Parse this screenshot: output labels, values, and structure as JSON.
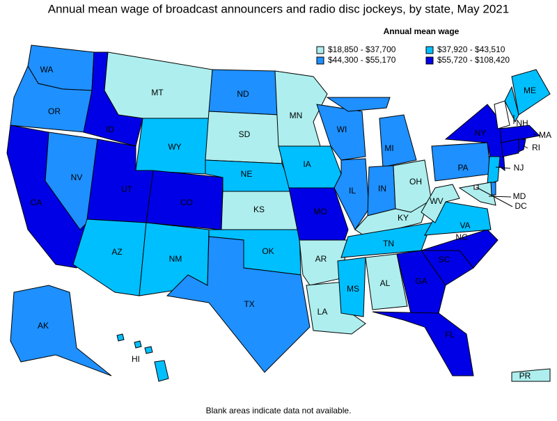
{
  "title": "Annual mean wage of broadcast announcers and radio disc jockeys, by state, May 2021",
  "legend": {
    "title": "Annual mean wage",
    "bins": [
      {
        "label": "$18,850 - $37,700",
        "color": "#aeeeee"
      },
      {
        "label": "$37,920 - $43,510",
        "color": "#00bfff"
      },
      {
        "label": "$44,300 - $55,170",
        "color": "#1e90ff"
      },
      {
        "label": "$55,720 - $108,420",
        "color": "#0000e6"
      }
    ]
  },
  "states": [
    {
      "label": "WA",
      "bin": 2
    },
    {
      "label": "OR",
      "bin": 2
    },
    {
      "label": "CA",
      "bin": 3
    },
    {
      "label": "NV",
      "bin": 2
    },
    {
      "label": "ID",
      "bin": 3
    },
    {
      "label": "MT",
      "bin": 0
    },
    {
      "label": "WY",
      "bin": 1
    },
    {
      "label": "UT",
      "bin": 3
    },
    {
      "label": "CO",
      "bin": 3
    },
    {
      "label": "AZ",
      "bin": 1
    },
    {
      "label": "NM",
      "bin": 1
    },
    {
      "label": "ND",
      "bin": 2
    },
    {
      "label": "SD",
      "bin": 0
    },
    {
      "label": "NE",
      "bin": 1
    },
    {
      "label": "KS",
      "bin": 0
    },
    {
      "label": "OK",
      "bin": 1
    },
    {
      "label": "TX",
      "bin": 2
    },
    {
      "label": "MN",
      "bin": 0
    },
    {
      "label": "IA",
      "bin": 1
    },
    {
      "label": "MO",
      "bin": 3
    },
    {
      "label": "AR",
      "bin": 0
    },
    {
      "label": "LA",
      "bin": 0
    },
    {
      "label": "WI",
      "bin": 2
    },
    {
      "label": "IL",
      "bin": 2
    },
    {
      "label": "MI",
      "bin": 2
    },
    {
      "label": "IN",
      "bin": 2
    },
    {
      "label": "OH",
      "bin": 0
    },
    {
      "label": "KY",
      "bin": 0
    },
    {
      "label": "TN",
      "bin": 1
    },
    {
      "label": "MS",
      "bin": 1
    },
    {
      "label": "AL",
      "bin": 0
    },
    {
      "label": "GA",
      "bin": 3
    },
    {
      "label": "FL",
      "bin": 3
    },
    {
      "label": "SC",
      "bin": 3
    },
    {
      "label": "NC",
      "bin": 3
    },
    {
      "label": "VA",
      "bin": 1
    },
    {
      "label": "WV",
      "bin": 0
    },
    {
      "label": "PA",
      "bin": 2
    },
    {
      "label": "NY",
      "bin": 3
    },
    {
      "label": "NJ",
      "bin": 1
    },
    {
      "label": "ME",
      "bin": 1
    },
    {
      "label": "NH",
      "bin": 1
    },
    {
      "bin": null
    },
    {
      "label": "MA",
      "bin": 3
    },
    {
      "bin": 3
    },
    {
      "label": "RI",
      "bin": 3
    },
    {
      "label": "MD",
      "bin": 0
    },
    {
      "bin": 2
    },
    {
      "label": "AK",
      "bin": 2
    },
    {
      "label": "HI",
      "bin": 1
    },
    {
      "label": "PR",
      "bin": 0
    },
    {
      "label": "DC",
      "bin": null
    }
  ],
  "footnote": "Blank areas indicate data not available."
}
